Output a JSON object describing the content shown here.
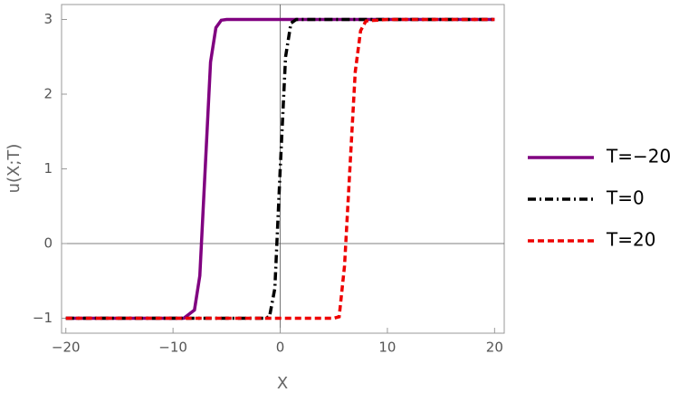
{
  "chart_data": {
    "type": "line",
    "x_label": "X",
    "y_label": "u(X;T)",
    "x": [
      -20,
      -15,
      -10,
      -9,
      -8,
      -7.5,
      -7,
      -6.5,
      -6,
      -5.5,
      -5,
      -3,
      -1.5,
      -1,
      -0.5,
      0,
      0.5,
      1,
      1.5,
      3,
      5,
      5.5,
      6,
      6.5,
      7,
      7.5,
      8,
      10,
      15,
      20
    ],
    "series": [
      {
        "name": "T=−20",
        "color": "#800080",
        "dash": "solid",
        "values": [
          -1,
          -1,
          -1,
          -1,
          -0.89,
          -0.43,
          1,
          2.43,
          2.89,
          2.99,
          3,
          3,
          3,
          3,
          3,
          3,
          3,
          3,
          3,
          3,
          3,
          3,
          3,
          3,
          3,
          3,
          3,
          3,
          3,
          3
        ]
      },
      {
        "name": "T=0",
        "color": "#000000",
        "dash": "dashdot",
        "values": [
          -1,
          -1,
          -1,
          -1,
          -1,
          -1,
          -1,
          -1,
          -1,
          -1,
          -1,
          -1,
          -1,
          -0.98,
          -0.6,
          1,
          2.5,
          2.95,
          3,
          3,
          3,
          3,
          3,
          3,
          3,
          3,
          3,
          3,
          3,
          3
        ]
      },
      {
        "name": "T=20",
        "color": "#ee0000",
        "dash": "dashed",
        "values": [
          -1,
          -1,
          -1,
          -1,
          -1,
          -1,
          -1,
          -1,
          -1,
          -1,
          -1,
          -1,
          -1,
          -1,
          -1,
          -1,
          -1,
          -1,
          -1,
          -1,
          -1,
          -0.98,
          -0.3,
          1,
          2.3,
          2.85,
          2.98,
          3,
          3,
          3
        ]
      }
    ],
    "xlim": [
      -20.4,
      20.9
    ],
    "ylim": [
      -1.2,
      3.2
    ],
    "xticks": [
      {
        "value": -20,
        "label": "−20"
      },
      {
        "value": -10,
        "label": "−10"
      },
      0,
      10,
      20
    ],
    "yticks": [
      {
        "value": -1,
        "label": "−1"
      },
      0,
      1,
      2,
      3
    ],
    "legend": "right",
    "grid": false
  }
}
